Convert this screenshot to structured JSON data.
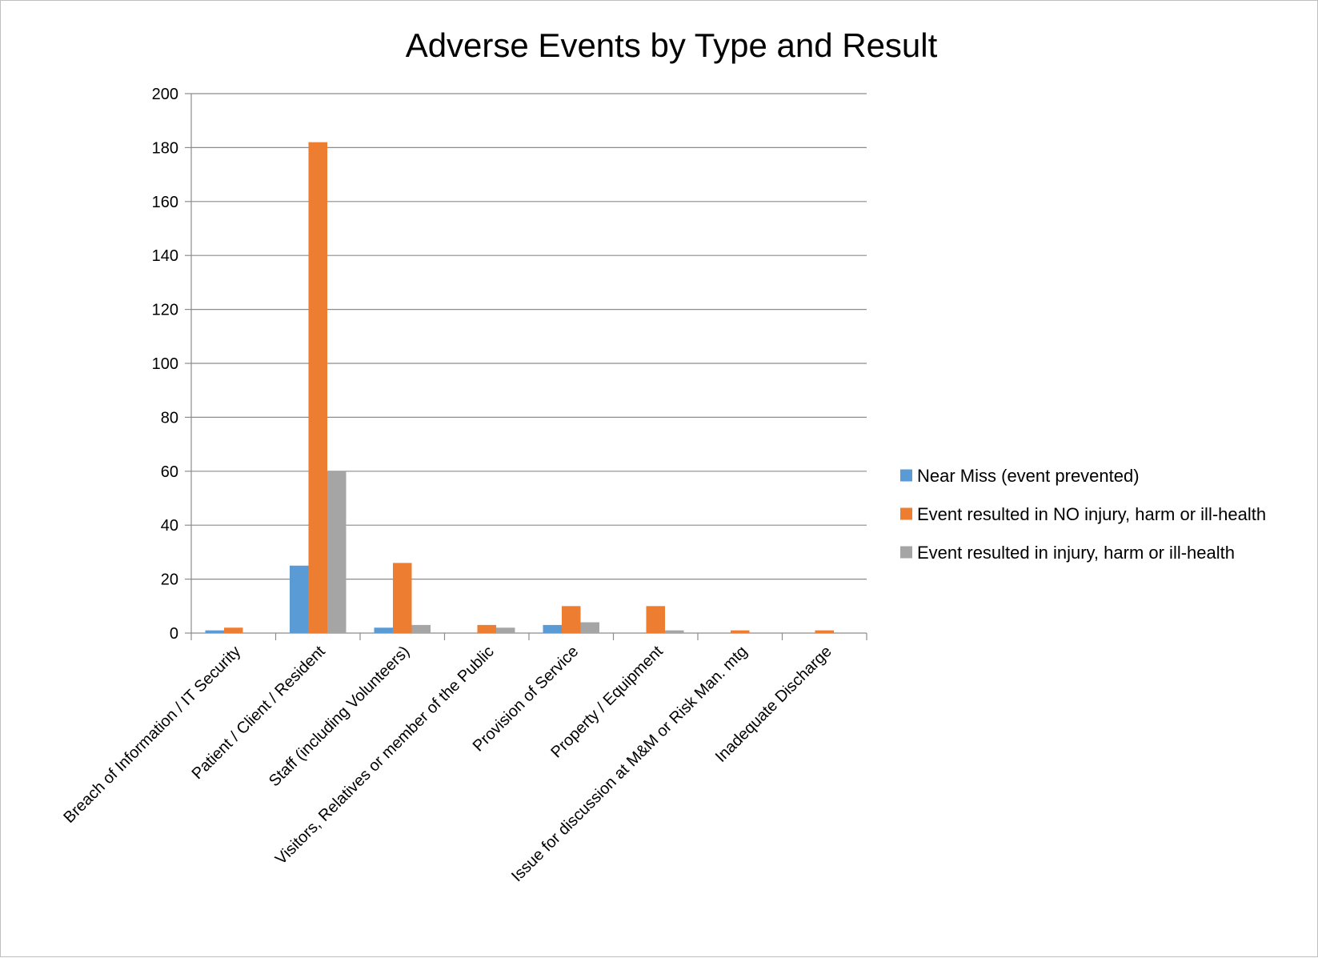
{
  "chart_data": {
    "type": "bar",
    "title": "Adverse Events by Type and Result",
    "xlabel": "",
    "ylabel": "",
    "ylim": [
      0,
      200
    ],
    "yticks": [
      0,
      20,
      40,
      60,
      80,
      100,
      120,
      140,
      160,
      180,
      200
    ],
    "grid": true,
    "legend_position": "right",
    "categories": [
      "Breach of Information / IT Security",
      "Patient / Client / Resident",
      "Staff (including Volunteers)",
      "Visitors, Relatives or member of the Public",
      "Provision of Service",
      "Property / Equipment",
      "Issue for discussion at M&M or Risk Man. mtg",
      "Inadequate Discharge"
    ],
    "series": [
      {
        "name": "Near Miss (event prevented)",
        "color": "#5b9bd5",
        "values": [
          1,
          25,
          2,
          0,
          3,
          0,
          0,
          0
        ]
      },
      {
        "name": "Event resulted in NO injury, harm or ill-health",
        "color": "#ed7d31",
        "values": [
          2,
          182,
          26,
          3,
          10,
          10,
          1,
          1
        ]
      },
      {
        "name": "Event resulted in injury, harm or ill-health",
        "color": "#a5a5a5",
        "values": [
          0,
          60,
          3,
          2,
          4,
          1,
          0,
          0
        ]
      }
    ]
  }
}
